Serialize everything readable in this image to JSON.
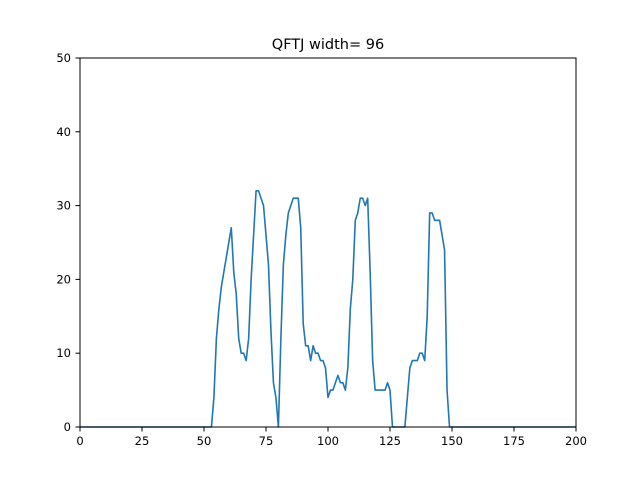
{
  "chart_data": {
    "type": "line",
    "title": "QFTJ width= 96",
    "xlabel": "",
    "ylabel": "",
    "xlim": [
      0,
      200
    ],
    "ylim": [
      0,
      50
    ],
    "xticks": [
      0,
      25,
      50,
      75,
      100,
      125,
      150,
      175,
      200
    ],
    "yticks": [
      0,
      10,
      20,
      30,
      40,
      50
    ],
    "grid": false,
    "legend": "none",
    "series_color": "#1f77b4",
    "series": [
      {
        "x": [
          0,
          52,
          53,
          54,
          55,
          56,
          57,
          58,
          59,
          60,
          61,
          62,
          63,
          64,
          65,
          66,
          67,
          68,
          69,
          70,
          71,
          72,
          73,
          74,
          75,
          76,
          77,
          78,
          79,
          80,
          81,
          82,
          83,
          84,
          85,
          86,
          87,
          88,
          89,
          90,
          91,
          92,
          93,
          94,
          95,
          96,
          97,
          98,
          99,
          100,
          101,
          102,
          103,
          104,
          105,
          106,
          107,
          108,
          109,
          110,
          111,
          112,
          113,
          114,
          115,
          116,
          117,
          118,
          119,
          120,
          121,
          122,
          123,
          124,
          125,
          126,
          127,
          128,
          129,
          130,
          131,
          132,
          133,
          134,
          135,
          136,
          137,
          138,
          139,
          140,
          141,
          142,
          143,
          144,
          145,
          146,
          147,
          148,
          149,
          150,
          200
        ],
        "values": [
          0,
          0,
          0,
          4,
          12,
          16,
          19,
          21,
          23,
          25,
          27,
          21,
          18,
          12,
          10,
          10,
          9,
          12,
          20,
          26,
          32,
          32,
          31,
          30,
          26,
          22,
          13,
          6,
          4,
          0,
          12,
          22,
          26,
          29,
          30,
          31,
          31,
          31,
          27,
          14,
          11,
          11,
          9,
          11,
          10,
          10,
          9,
          9,
          8,
          4,
          5,
          5,
          6,
          7,
          6,
          6,
          5,
          8,
          16,
          20,
          28,
          29,
          31,
          31,
          30,
          31,
          21,
          9,
          5,
          5,
          5,
          5,
          5,
          6,
          5,
          0,
          0,
          0,
          0,
          0,
          0,
          4,
          8,
          9,
          9,
          9,
          10,
          10,
          9,
          15,
          29,
          29,
          28,
          28,
          28,
          26,
          24,
          5,
          0,
          0,
          0
        ]
      }
    ]
  }
}
